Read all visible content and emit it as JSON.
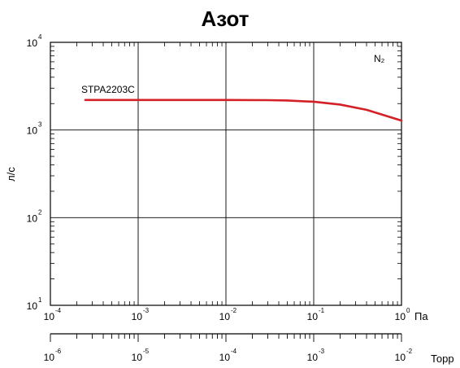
{
  "chart_data": {
    "type": "line",
    "title": "Азот",
    "ylabel": "л/с",
    "gas_label": "N₂",
    "x_scale": "log",
    "y_scale": "log",
    "xlim": [
      0.0001,
      1
    ],
    "ylim": [
      10,
      10000
    ],
    "grid": true,
    "x_axis": {
      "unit": "Па",
      "ticks": [
        {
          "base": "10",
          "exp": "-4"
        },
        {
          "base": "10",
          "exp": "-3"
        },
        {
          "base": "10",
          "exp": "-2"
        },
        {
          "base": "10",
          "exp": "-1"
        },
        {
          "base": "10",
          "exp": "0"
        }
      ]
    },
    "y_axis": {
      "ticks": [
        {
          "base": "10",
          "exp": "1"
        },
        {
          "base": "10",
          "exp": "2"
        },
        {
          "base": "10",
          "exp": "3"
        },
        {
          "base": "10",
          "exp": "4"
        }
      ]
    },
    "secondary_x_axis": {
      "unit": "Торр",
      "range": [
        1e-06,
        0.01
      ],
      "ticks": [
        {
          "base": "10",
          "exp": "-6"
        },
        {
          "base": "10",
          "exp": "-5"
        },
        {
          "base": "10",
          "exp": "-4"
        },
        {
          "base": "10",
          "exp": "-3"
        },
        {
          "base": "10",
          "exp": "-2"
        }
      ]
    },
    "series": [
      {
        "name": "STPA2203C",
        "color": "#d42027",
        "x": [
          0.00025,
          0.001,
          0.005,
          0.01,
          0.03,
          0.05,
          0.1,
          0.2,
          0.4,
          0.6,
          1.0
        ],
        "y": [
          2200,
          2200,
          2200,
          2200,
          2190,
          2170,
          2100,
          1950,
          1700,
          1500,
          1280
        ]
      }
    ]
  }
}
